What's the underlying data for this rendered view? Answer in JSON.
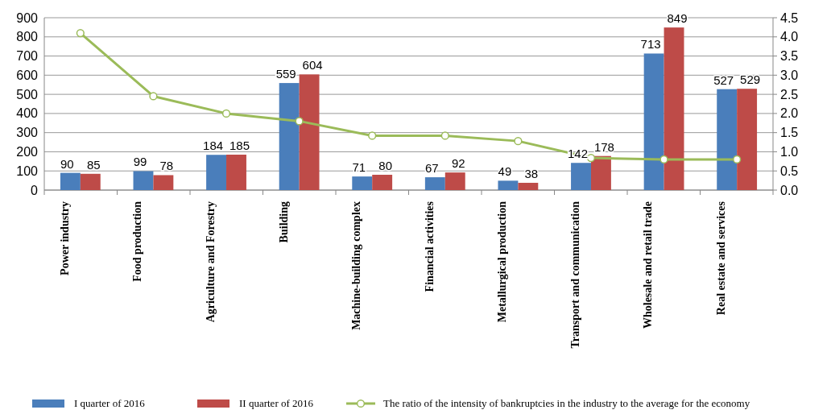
{
  "chart_data": {
    "type": "bar",
    "categories": [
      "Power industry",
      "Food production",
      "Agriculture and Forestry",
      "Building",
      "Machine-building complex",
      "Financial activities",
      "Metallurgical production",
      "Transport and communication",
      "Wholesale and retail trade",
      "Real estate and services"
    ],
    "series": [
      {
        "name": "I quarter of 2016",
        "color": "#4a7ebb",
        "values": [
          90,
          99,
          184,
          559,
          71,
          67,
          49,
          142,
          713,
          527
        ],
        "value_labels": [
          "90",
          "99",
          "184",
          "559",
          "71",
          "67",
          "49",
          "142",
          "713",
          "527"
        ]
      },
      {
        "name": "II quarter of 2016",
        "color": "#be4b48",
        "values": [
          85,
          78,
          185,
          604,
          80,
          92,
          38,
          178,
          849,
          529
        ],
        "value_labels": [
          "85",
          "78",
          "185",
          "604",
          "80",
          "92",
          "38",
          "178",
          "849",
          "529"
        ]
      },
      {
        "name": "The ratio of the intensity of bankruptcies in the industry to the average for the economy",
        "type": "line",
        "axis": "y2",
        "color": "#9bbb59",
        "values": [
          4.1,
          2.45,
          2.0,
          1.8,
          1.42,
          1.42,
          1.28,
          0.84,
          0.8,
          0.8
        ]
      }
    ],
    "ylim": [
      0,
      900
    ],
    "yticks": [
      0,
      100,
      200,
      300,
      400,
      500,
      600,
      700,
      800,
      900
    ],
    "y2lim": [
      0,
      4.5
    ],
    "y2ticks": [
      {
        "value": 0,
        "label": "0.0"
      },
      {
        "value": 0.5,
        "label": "0.5"
      },
      {
        "value": 1,
        "label": "1.0"
      },
      {
        "value": 1.5,
        "label": "1.5"
      },
      {
        "value": 2,
        "label": "2.0"
      },
      {
        "value": 2.5,
        "label": "2.5"
      },
      {
        "value": 3,
        "label": "3.0"
      },
      {
        "value": 3.5,
        "label": "3.5"
      },
      {
        "value": 4,
        "label": "4.0"
      },
      {
        "value": 4.5,
        "label": "4.5"
      }
    ],
    "grid": "y",
    "marker": "circle",
    "legend": "bottom"
  }
}
